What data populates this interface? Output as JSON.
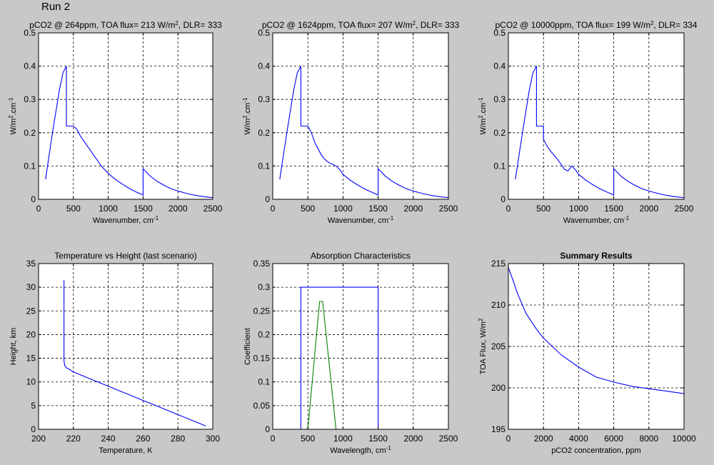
{
  "run_title": "Run 2",
  "chart_data": [
    {
      "type": "line",
      "title_parts": [
        "pCO2 @ 264ppm, TOA flux= 213 W/m",
        "2",
        ", DLR= 333"
      ],
      "xlabel": "Wavenumber, cm",
      "xlabel_sup": "-1",
      "ylabel": "W/m",
      "ylabel_sup": "2",
      "ylabel_suffix": ".cm",
      "ylabel_sup2": "-1",
      "xlim": [
        0,
        2500
      ],
      "ylim": [
        0,
        0.5
      ],
      "xticks": [
        0,
        500,
        1000,
        1500,
        2000,
        2500
      ],
      "yticks": [
        0,
        0.1,
        0.2,
        0.3,
        0.4,
        0.5
      ],
      "xtick_labels": [
        "0",
        "500",
        "1000",
        "1500",
        "2000",
        "2500"
      ],
      "ytick_labels": [
        "0",
        "0.1",
        "0.2",
        "0.3",
        "0.4",
        "0.5"
      ],
      "grid": true,
      "series": [
        {
          "color": "#0000ff",
          "x": [
            100,
            200,
            300,
            350,
            400,
            400,
            420,
            500,
            550,
            600,
            700,
            800,
            900,
            1000,
            1100,
            1200,
            1300,
            1400,
            1500,
            1500,
            1600,
            1700,
            1800,
            1900,
            2000,
            2100,
            2200,
            2300,
            2400,
            2500
          ],
          "y": [
            0.06,
            0.2,
            0.33,
            0.38,
            0.4,
            0.22,
            0.22,
            0.22,
            0.21,
            0.19,
            0.16,
            0.13,
            0.1,
            0.078,
            0.06,
            0.046,
            0.033,
            0.022,
            0.013,
            0.092,
            0.07,
            0.054,
            0.042,
            0.032,
            0.025,
            0.019,
            0.014,
            0.01,
            0.007,
            0.005
          ]
        }
      ]
    },
    {
      "type": "line",
      "title_parts": [
        "pCO2 @ 1624ppm, TOA flux= 207 W/m",
        "2",
        ", DLR= 333"
      ],
      "xlabel": "Wavenumber, cm",
      "xlabel_sup": "-1",
      "ylabel": "W/m",
      "ylabel_sup": "2",
      "ylabel_suffix": ".cm",
      "ylabel_sup2": "-1",
      "xlim": [
        0,
        2500
      ],
      "ylim": [
        0,
        0.5
      ],
      "xticks": [
        0,
        500,
        1000,
        1500,
        2000,
        2500
      ],
      "yticks": [
        0,
        0.1,
        0.2,
        0.3,
        0.4,
        0.5
      ],
      "xtick_labels": [
        "0",
        "500",
        "1000",
        "1500",
        "2000",
        "2500"
      ],
      "ytick_labels": [
        "0",
        "0.1",
        "0.2",
        "0.3",
        "0.4",
        "0.5"
      ],
      "grid": true,
      "series": [
        {
          "color": "#0000ff",
          "x": [
            100,
            200,
            300,
            350,
            400,
            400,
            420,
            500,
            550,
            600,
            700,
            750,
            800,
            900,
            950,
            1000,
            1100,
            1200,
            1300,
            1400,
            1500,
            1500,
            1600,
            1700,
            1800,
            1900,
            2000,
            2100,
            2200,
            2300,
            2400,
            2500
          ],
          "y": [
            0.06,
            0.2,
            0.33,
            0.38,
            0.4,
            0.22,
            0.22,
            0.22,
            0.2,
            0.17,
            0.13,
            0.118,
            0.11,
            0.1,
            0.09,
            0.075,
            0.058,
            0.044,
            0.032,
            0.022,
            0.013,
            0.092,
            0.07,
            0.054,
            0.042,
            0.032,
            0.025,
            0.019,
            0.014,
            0.01,
            0.007,
            0.005
          ]
        }
      ]
    },
    {
      "type": "line",
      "title_parts": [
        "pCO2 @ 10000ppm, TOA flux= 199 W/m",
        "2",
        ", DLR= 334"
      ],
      "xlabel": "Wavenumber, cm",
      "xlabel_sup": "-1",
      "ylabel": "W/m",
      "ylabel_sup": "2",
      "ylabel_suffix": ".cm",
      "ylabel_sup2": "-1",
      "xlim": [
        0,
        2500
      ],
      "ylim": [
        0,
        0.5
      ],
      "xticks": [
        0,
        500,
        1000,
        1500,
        2000,
        2500
      ],
      "yticks": [
        0,
        0.1,
        0.2,
        0.3,
        0.4,
        0.5
      ],
      "xtick_labels": [
        "0",
        "500",
        "1000",
        "1500",
        "2000",
        "2500"
      ],
      "ytick_labels": [
        "0",
        "0.1",
        "0.2",
        "0.3",
        "0.4",
        "0.5"
      ],
      "grid": true,
      "series": [
        {
          "color": "#0000ff",
          "x": [
            100,
            200,
            300,
            350,
            400,
            400,
            420,
            500,
            500,
            550,
            600,
            700,
            800,
            850,
            900,
            950,
            1000,
            1100,
            1200,
            1300,
            1400,
            1500,
            1500,
            1600,
            1700,
            1800,
            1900,
            2000,
            2100,
            2200,
            2300,
            2400,
            2500
          ],
          "y": [
            0.06,
            0.2,
            0.33,
            0.38,
            0.4,
            0.22,
            0.22,
            0.22,
            0.18,
            0.16,
            0.145,
            0.12,
            0.09,
            0.085,
            0.1,
            0.09,
            0.075,
            0.058,
            0.044,
            0.032,
            0.022,
            0.013,
            0.092,
            0.07,
            0.054,
            0.042,
            0.032,
            0.025,
            0.019,
            0.014,
            0.01,
            0.007,
            0.005
          ]
        }
      ]
    },
    {
      "type": "line",
      "title_parts": [
        "Temperature vs Height (last scenario)"
      ],
      "xlabel": "Temperature, K",
      "ylabel": "Height, km",
      "xlim": [
        200,
        300
      ],
      "ylim": [
        0,
        35
      ],
      "xticks": [
        200,
        220,
        240,
        260,
        280,
        300
      ],
      "yticks": [
        0,
        5,
        10,
        15,
        20,
        25,
        30,
        35
      ],
      "xtick_labels": [
        "200",
        "220",
        "240",
        "260",
        "280",
        "300"
      ],
      "ytick_labels": [
        "0",
        "5",
        "10",
        "15",
        "20",
        "25",
        "30",
        "35"
      ],
      "grid": true,
      "series": [
        {
          "color": "#0000ff",
          "x": [
            214.6,
            214.6,
            215,
            216,
            218,
            220,
            230,
            240,
            250,
            260,
            270,
            280,
            290,
            296
          ],
          "y": [
            31.5,
            14.5,
            13.5,
            13,
            12.6,
            12.1,
            10.6,
            9.1,
            7.6,
            6.1,
            4.6,
            3.1,
            1.6,
            0.7
          ]
        }
      ]
    },
    {
      "type": "line",
      "title_parts": [
        "Absorption Characteristics"
      ],
      "xlabel": "Wavelength, cm",
      "xlabel_sup": "-1",
      "ylabel": "Coefficient",
      "xlim": [
        0,
        2500
      ],
      "ylim": [
        0,
        0.35
      ],
      "xticks": [
        0,
        500,
        1000,
        1500,
        2000,
        2500
      ],
      "yticks": [
        0,
        0.05,
        0.1,
        0.15,
        0.2,
        0.25,
        0.3,
        0.35
      ],
      "xtick_labels": [
        "0",
        "500",
        "1000",
        "1500",
        "2000",
        "2500"
      ],
      "ytick_labels": [
        "0",
        "0.05",
        "0.1",
        "0.15",
        "0.2",
        "0.25",
        "0.3",
        "0.35"
      ],
      "grid": true,
      "series": [
        {
          "color": "#0000ff",
          "x": [
            0,
            400,
            400,
            1500,
            1500,
            2500
          ],
          "y": [
            0,
            0,
            0.3,
            0.3,
            0,
            0
          ]
        },
        {
          "color": "#008000",
          "x": [
            0,
            500,
            667,
            710,
            900,
            2500
          ],
          "y": [
            0,
            0,
            0.27,
            0.27,
            0,
            0
          ]
        }
      ]
    },
    {
      "type": "line",
      "title_parts": [
        "Summary Results"
      ],
      "title_bold": true,
      "xlabel": "pCO2 concentration, ppm",
      "ylabel": "TOA Flux, W/m",
      "ylabel_sup": "2",
      "xlim": [
        0,
        10000
      ],
      "ylim": [
        195,
        215
      ],
      "xticks": [
        0,
        2000,
        4000,
        6000,
        8000,
        10000
      ],
      "yticks": [
        195,
        200,
        205,
        210,
        215
      ],
      "xtick_labels": [
        "0",
        "2000",
        "4000",
        "6000",
        "8000",
        "10000"
      ],
      "ytick_labels": [
        "195",
        "200",
        "205",
        "210",
        "215"
      ],
      "grid": true,
      "series": [
        {
          "color": "#0000ff",
          "x": [
            0,
            264,
            500,
            1000,
            1624,
            2000,
            3000,
            4000,
            5000,
            6000,
            7000,
            8000,
            9000,
            10000
          ],
          "y": [
            214.5,
            213,
            211.5,
            209,
            207,
            206,
            204,
            202.5,
            201.3,
            200.7,
            200.2,
            199.9,
            199.6,
            199.3
          ]
        }
      ]
    }
  ]
}
